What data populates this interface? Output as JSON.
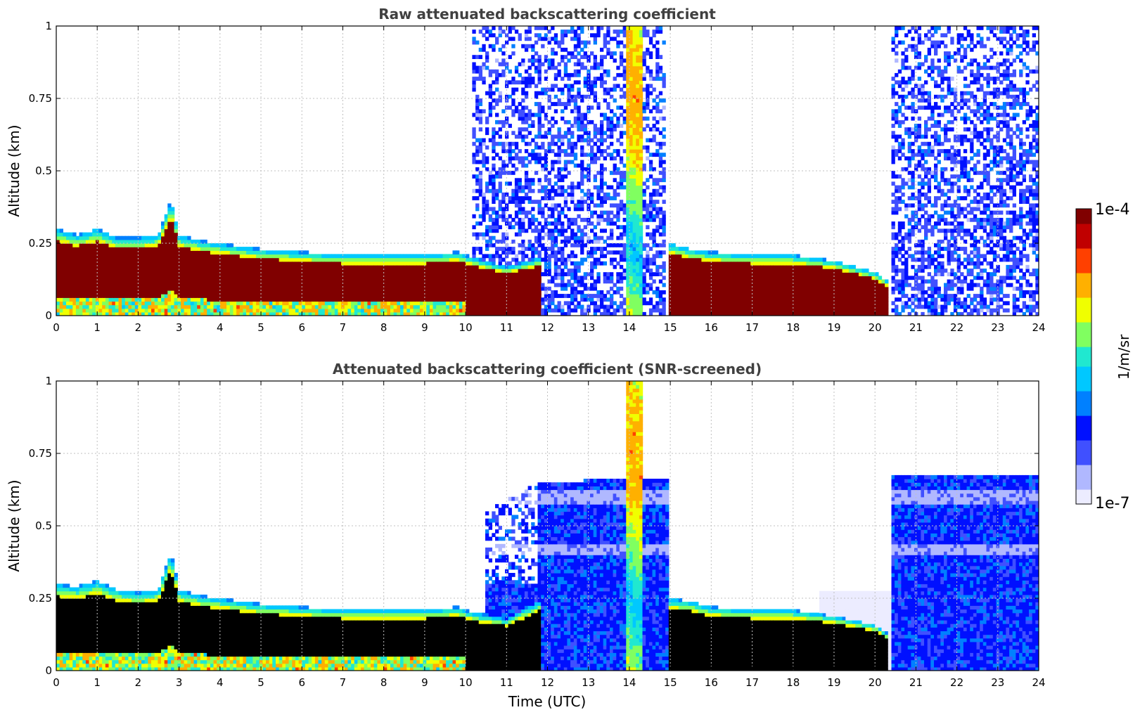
{
  "chart_data": [
    {
      "type": "heatmap",
      "title": "Raw attenuated backscattering coefficient",
      "xlabel": "",
      "ylabel": "Altitude (km)",
      "xlim": [
        0,
        24
      ],
      "ylim": [
        0,
        1
      ],
      "x_ticks": [
        "0",
        "1",
        "2",
        "3",
        "4",
        "5",
        "6",
        "7",
        "8",
        "9",
        "10",
        "11",
        "12",
        "13",
        "14",
        "15",
        "16",
        "17",
        "18",
        "19",
        "20",
        "21",
        "22",
        "23",
        "24"
      ],
      "y_ticks": [
        "0",
        "0.25",
        "0.5",
        "0.75",
        "1"
      ],
      "grid": true,
      "screened": false,
      "boundary_layer_top_km": [
        [
          0,
          0.3
        ],
        [
          0.5,
          0.28
        ],
        [
          1,
          0.3
        ],
        [
          1.5,
          0.27
        ],
        [
          2,
          0.27
        ],
        [
          2.5,
          0.28
        ],
        [
          2.8,
          0.4
        ],
        [
          3,
          0.28
        ],
        [
          3.5,
          0.26
        ],
        [
          4,
          0.25
        ],
        [
          5,
          0.23
        ],
        [
          6,
          0.22
        ],
        [
          7,
          0.21
        ],
        [
          8,
          0.21
        ],
        [
          9,
          0.21
        ],
        [
          9.8,
          0.22
        ],
        [
          10.2,
          0.2
        ],
        [
          11,
          0.17
        ],
        [
          11.8,
          0.2
        ],
        [
          15,
          0.25
        ],
        [
          15.5,
          0.23
        ],
        [
          16,
          0.22
        ],
        [
          17,
          0.21
        ],
        [
          18,
          0.21
        ],
        [
          18.5,
          0.2
        ],
        [
          19,
          0.19
        ],
        [
          20,
          0.15
        ],
        [
          20.3,
          0.12
        ]
      ],
      "noise_regions_hours": [
        [
          10.2,
          14.0
        ],
        [
          14.2,
          14.9
        ],
        [
          20.4,
          24.0
        ]
      ],
      "vertical_column_hours": [
        13.9,
        14.3
      ],
      "colorbar": {
        "min_label": "1e-7",
        "max_label": "1e-4",
        "label": "1/m/sr",
        "scale": "log"
      }
    },
    {
      "type": "heatmap",
      "title": "Attenuated backscattering coefficient (SNR-screened)",
      "xlabel": "Time (UTC)",
      "ylabel": "Altitude (km)",
      "xlim": [
        0,
        24
      ],
      "ylim": [
        0,
        1
      ],
      "x_ticks": [
        "0",
        "1",
        "2",
        "3",
        "4",
        "5",
        "6",
        "7",
        "8",
        "9",
        "10",
        "11",
        "12",
        "13",
        "14",
        "15",
        "16",
        "17",
        "18",
        "19",
        "20",
        "21",
        "22",
        "23",
        "24"
      ],
      "y_ticks": [
        "0",
        "0.25",
        "0.5",
        "0.75",
        "1"
      ],
      "grid": true,
      "screened": true,
      "boundary_layer_top_km": [
        [
          0,
          0.3
        ],
        [
          0.5,
          0.29
        ],
        [
          1,
          0.31
        ],
        [
          1.5,
          0.28
        ],
        [
          2,
          0.27
        ],
        [
          2.5,
          0.28
        ],
        [
          2.8,
          0.41
        ],
        [
          3,
          0.28
        ],
        [
          3.5,
          0.26
        ],
        [
          4,
          0.25
        ],
        [
          5,
          0.23
        ],
        [
          6,
          0.22
        ],
        [
          7,
          0.21
        ],
        [
          8,
          0.21
        ],
        [
          9,
          0.21
        ],
        [
          9.8,
          0.22
        ],
        [
          10.2,
          0.2
        ],
        [
          11,
          0.18
        ],
        [
          11.8,
          0.24
        ],
        [
          15,
          0.25
        ],
        [
          15.5,
          0.24
        ],
        [
          16,
          0.22
        ],
        [
          17,
          0.21
        ],
        [
          18,
          0.21
        ],
        [
          18.5,
          0.2
        ],
        [
          19,
          0.19
        ],
        [
          20,
          0.16
        ],
        [
          20.3,
          0.13
        ]
      ],
      "cloud_layer_top_km": [
        [
          10.5,
          0.55
        ],
        [
          11.8,
          0.65
        ],
        [
          13.5,
          0.66
        ],
        [
          14.9,
          0.66
        ],
        [
          20.4,
          0.68
        ],
        [
          24,
          0.68
        ]
      ],
      "vertical_column_hours": [
        13.9,
        14.3
      ],
      "colorbar": {
        "min_label": "1e-7",
        "max_label": "1e-4",
        "label": "1/m/sr",
        "scale": "log"
      }
    }
  ],
  "colors": {
    "colormap": [
      "#ececff",
      "#b0b8ff",
      "#4050ff",
      "#0010ff",
      "#0080ff",
      "#00c8ff",
      "#20e8d0",
      "#80ff60",
      "#f0ff00",
      "#ffb000",
      "#ff4000",
      "#c00000",
      "#800000"
    ],
    "saturated_screened": "#000000",
    "title_color": "#404040",
    "grid_color": "#c0c0c0"
  }
}
